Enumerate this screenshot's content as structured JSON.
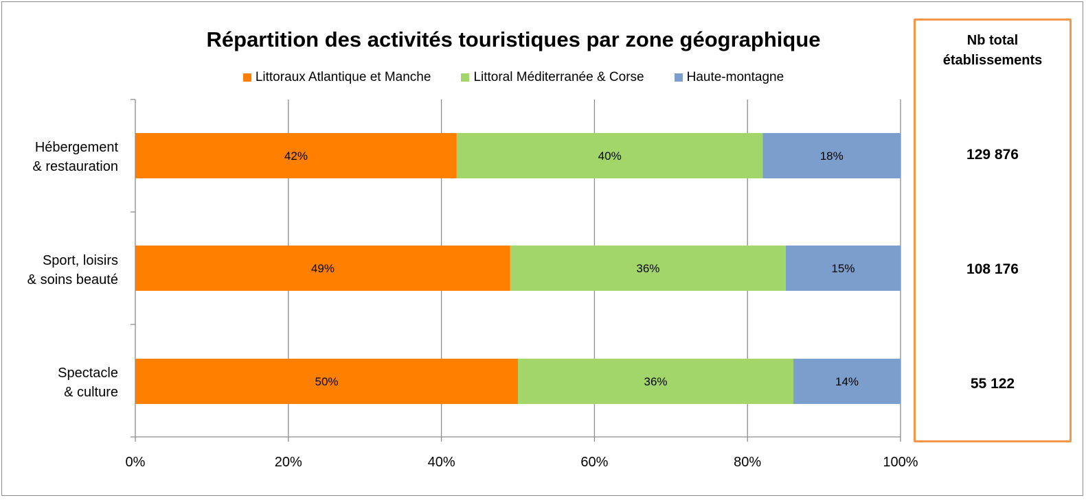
{
  "chart_data": {
    "type": "bar",
    "orientation": "horizontal",
    "stacked": true,
    "title": "Répartition des activités touristiques par zone géographique",
    "categories": [
      "Hébergement\n& restauration",
      "Sport, loisirs\n& soins beauté",
      "Spectacle\n& culture"
    ],
    "series": [
      {
        "name": "Littoraux Atlantique et Manche",
        "values": [
          42,
          49,
          50
        ],
        "labels": [
          "42%",
          "49%",
          "50%"
        ],
        "color": "#ff8000"
      },
      {
        "name": "Littoral Méditerranée & Corse",
        "values": [
          40,
          36,
          36
        ],
        "labels": [
          "40%",
          "36%",
          "36%"
        ],
        "color": "#a2d66a"
      },
      {
        "name": "Haute-montagne",
        "values": [
          18,
          15,
          14
        ],
        "labels": [
          "18%",
          "15%",
          "14%"
        ],
        "color": "#7b9ecd"
      }
    ],
    "xlim": [
      0,
      100
    ],
    "x_ticks": [
      "0%",
      "20%",
      "40%",
      "60%",
      "80%",
      "100%"
    ],
    "grid": true,
    "legend_position": "top"
  },
  "totals": {
    "header": "Nb total\nétablissements",
    "values": [
      "129 876",
      "108 176",
      "55 122"
    ],
    "border_color": "#f79646"
  }
}
